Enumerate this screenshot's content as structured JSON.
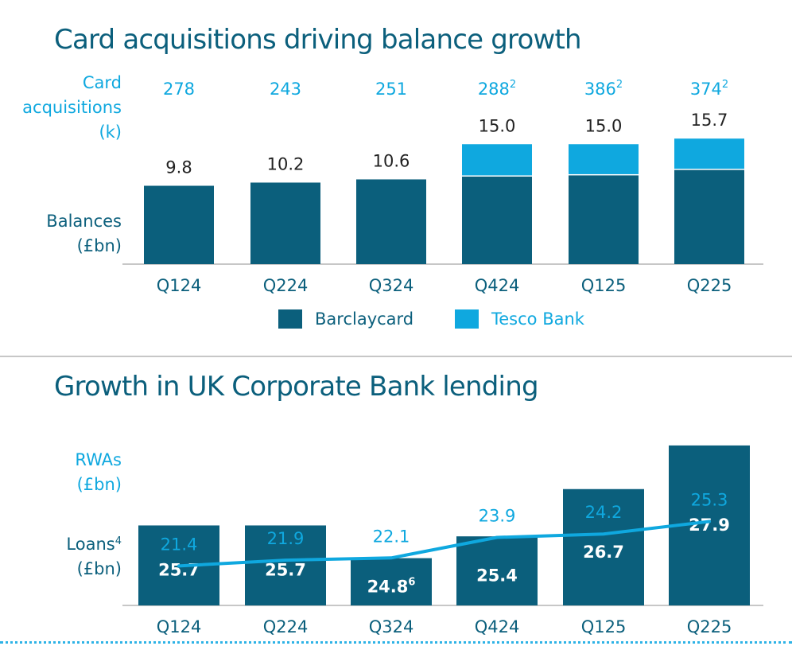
{
  "colors": {
    "navy": "#0b5f7c",
    "cyan": "#0fa8df",
    "axis": "#c7c7c7",
    "white": "#ffffff"
  },
  "top_panel": {
    "title": "Card acquisitions driving balance growth",
    "card_label": [
      "Card",
      "acquisitions",
      "(k)"
    ],
    "balances_label": [
      "Balances",
      "(£bn)"
    ],
    "legend": {
      "barclaycard": "Barclaycard",
      "tesco": "Tesco Bank"
    }
  },
  "bottom_panel": {
    "title": "Growth in UK Corporate Bank lending",
    "rwas_label": [
      "RWAs",
      "(£bn)"
    ],
    "loans_label": {
      "line1": "Loans",
      "line1_sup": "4",
      "line2": "(£bn)"
    }
  },
  "chart_data": [
    {
      "type": "bar",
      "title": "Card acquisitions driving balance growth",
      "ylabel": "Balances (£bn)",
      "categories": [
        "Q124",
        "Q224",
        "Q324",
        "Q424",
        "Q125",
        "Q225"
      ],
      "stacked": true,
      "series": [
        {
          "name": "Barclaycard",
          "color": "#0b5f7c"
        },
        {
          "name": "Tesco Bank",
          "color": "#0fa8df"
        }
      ],
      "totals": [
        9.8,
        10.2,
        10.6,
        15.0,
        15.0,
        15.7
      ],
      "total_labels": [
        "9.8",
        "10.2",
        "10.6",
        "15.0",
        "15.0",
        "15.7"
      ],
      "tesco_share": [
        0,
        0,
        0,
        0.27,
        0.26,
        0.25
      ],
      "card_acquisitions_k": [
        278,
        243,
        251,
        288,
        386,
        374
      ],
      "card_acquisitions_labels": [
        "278",
        "243",
        "251",
        "288",
        "386",
        "374"
      ],
      "card_acquisitions_sup": [
        "",
        "",
        "",
        "2",
        "2",
        "2"
      ],
      "legend_position": "bottom"
    },
    {
      "type": "bar",
      "title": "Growth in UK Corporate Bank lending",
      "ylabel": "Loans (£bn)",
      "categories": [
        "Q124",
        "Q224",
        "Q324",
        "Q424",
        "Q125",
        "Q225"
      ],
      "loans": [
        25.7,
        25.7,
        24.8,
        25.4,
        26.7,
        27.9
      ],
      "loan_labels": [
        "25.7",
        "25.7",
        "24.8",
        "25.4",
        "26.7",
        "27.9"
      ],
      "loan_sup": [
        "",
        "",
        "6",
        "",
        "",
        ""
      ],
      "loans_axis_min": 23.5,
      "rwas_line": {
        "name": "RWAs (£bn)",
        "values": [
          21.4,
          21.9,
          22.1,
          23.9,
          24.2,
          25.3
        ],
        "labels": [
          "21.4",
          "21.9",
          "22.1",
          "23.9",
          "24.2",
          "25.3"
        ],
        "axis_range": [
          18,
          40
        ]
      }
    }
  ]
}
